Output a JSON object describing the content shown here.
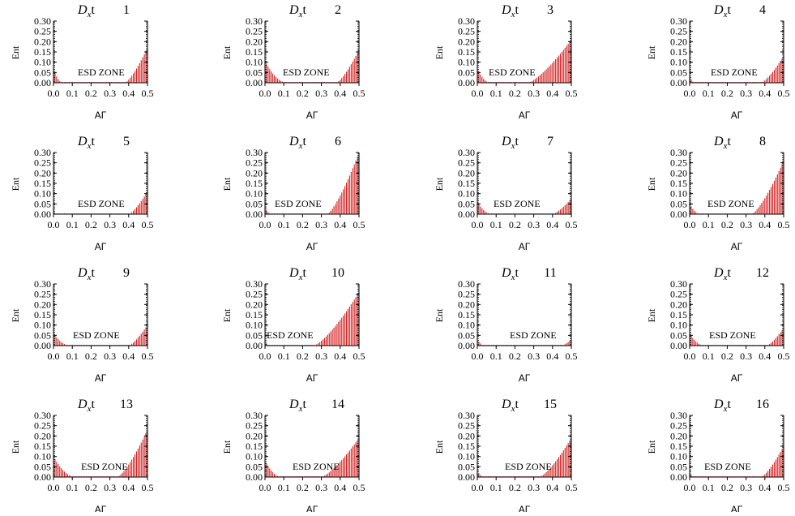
{
  "chart_data": {
    "type": "bar",
    "panel_title_prefix": "D",
    "panel_title_subscript": "x",
    "panel_title_suffix": "t",
    "xlabel": "AΓ",
    "ylabel": "Ent",
    "zone_label": "ESD ZONE",
    "xlim": [
      0.0,
      0.5
    ],
    "ylim": [
      0.0,
      0.3
    ],
    "xticks": [
      "0.0",
      "0.1",
      "0.2",
      "0.3",
      "0.4",
      "0.5"
    ],
    "yticks": [
      "0.00",
      "0.05",
      "0.10",
      "0.15",
      "0.20",
      "0.25",
      "0.30"
    ],
    "bar_color": "#d62020",
    "grid": false,
    "panels": [
      {
        "number": "1",
        "left": {
          "end": 0.05,
          "y0": 0.07
        },
        "right": {
          "start": 0.38,
          "y_end": 0.17
        }
      },
      {
        "number": "2",
        "left": {
          "end": 0.12,
          "y0": 0.105
        },
        "right": {
          "start": 0.38,
          "y_end": 0.16
        }
      },
      {
        "number": "3",
        "left": {
          "end": 0.07,
          "y0": 0.07
        },
        "right": {
          "start": 0.27,
          "y_end": 0.21
        }
      },
      {
        "number": "4",
        "left": {
          "end": 0.03,
          "y0": 0.03
        },
        "right": {
          "start": 0.38,
          "y_end": 0.13
        }
      },
      {
        "number": "5",
        "left": {
          "end": 0.02,
          "y0": 0.01
        },
        "right": {
          "start": 0.4,
          "y_end": 0.11
        }
      },
      {
        "number": "6",
        "left": {
          "end": 0.04,
          "y0": 0.03
        },
        "right": {
          "start": 0.33,
          "y_end": 0.3
        }
      },
      {
        "number": "7",
        "left": {
          "end": 0.08,
          "y0": 0.06
        },
        "right": {
          "start": 0.4,
          "y_end": 0.075
        }
      },
      {
        "number": "8",
        "left": {
          "end": 0.06,
          "y0": 0.05
        },
        "right": {
          "start": 0.33,
          "y_end": 0.26
        }
      },
      {
        "number": "9",
        "left": {
          "end": 0.09,
          "y0": 0.06
        },
        "right": {
          "start": 0.4,
          "y_end": 0.1
        }
      },
      {
        "number": "10",
        "left": {
          "end": 0.03,
          "y0": 0.02
        },
        "right": {
          "start": 0.26,
          "y_end": 0.26
        }
      },
      {
        "number": "11",
        "left": {
          "end": 0.04,
          "y0": 0.03
        },
        "right": {
          "start": 0.45,
          "y_end": 0.03
        }
      },
      {
        "number": "12",
        "left": {
          "end": 0.08,
          "y0": 0.06
        },
        "right": {
          "start": 0.41,
          "y_end": 0.085
        }
      },
      {
        "number": "13",
        "left": {
          "end": 0.12,
          "y0": 0.1
        },
        "right": {
          "start": 0.34,
          "y_end": 0.23
        }
      },
      {
        "number": "14",
        "left": {
          "end": 0.09,
          "y0": 0.08
        },
        "right": {
          "start": 0.3,
          "y_end": 0.19
        }
      },
      {
        "number": "15",
        "left": {
          "end": 0.04,
          "y0": 0.03
        },
        "right": {
          "start": 0.33,
          "y_end": 0.19
        }
      },
      {
        "number": "16",
        "left": {
          "end": 0.03,
          "y0": 0.02
        },
        "right": {
          "start": 0.38,
          "y_end": 0.15
        }
      }
    ]
  }
}
